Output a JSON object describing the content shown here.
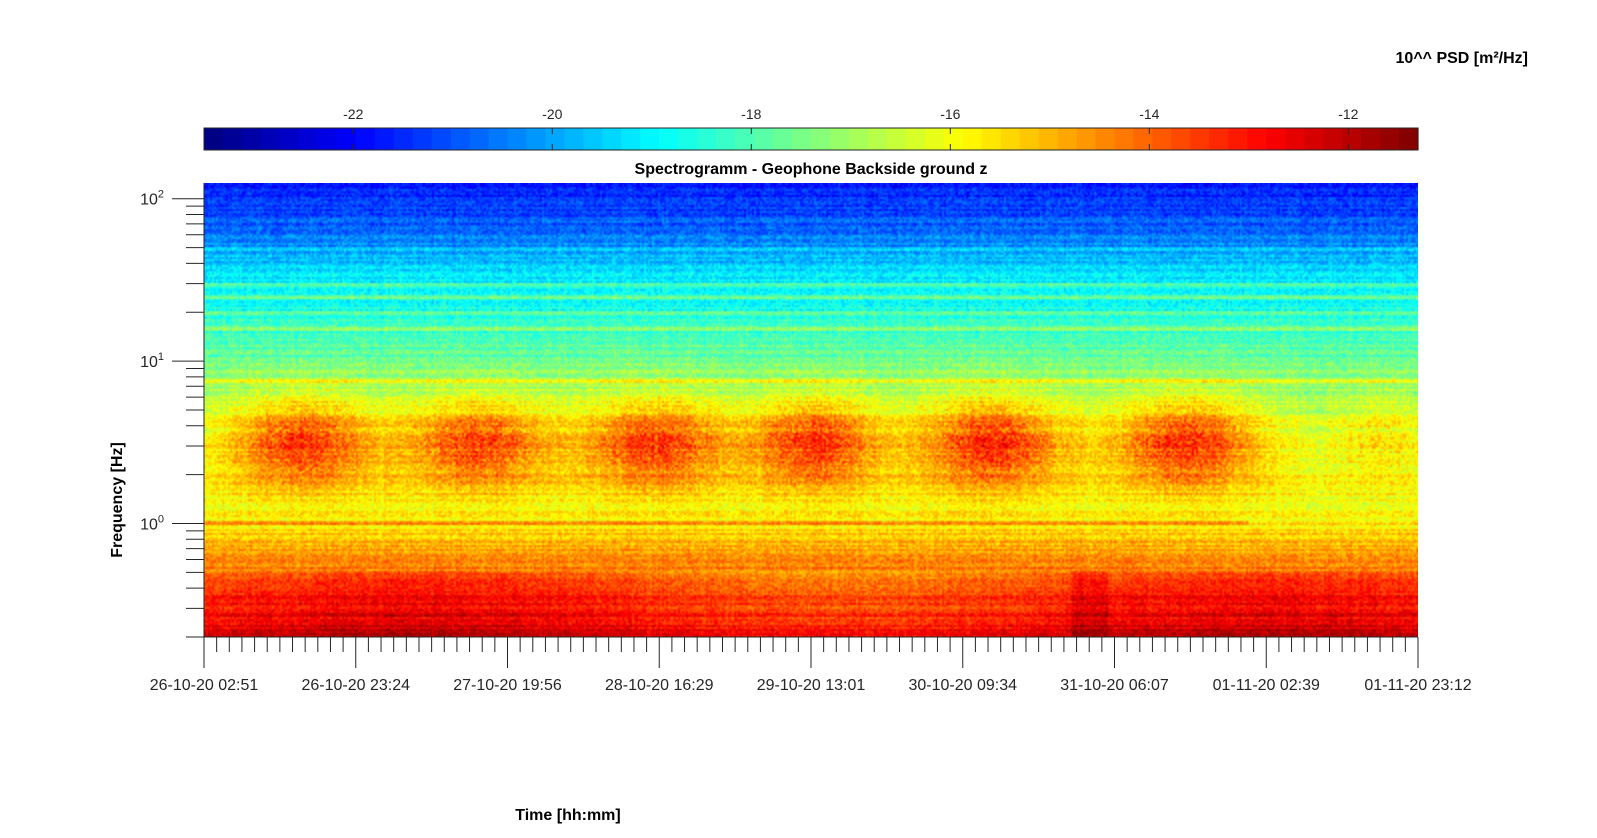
{
  "chart_data": {
    "type": "heatmap",
    "title": "Spectrogramm - Geophone Backside ground z",
    "xlabel": "Time [hh:mm]",
    "ylabel": "Frequency [Hz]",
    "x_tick_labels": [
      "26-10-20 02:51",
      "26-10-20 23:24",
      "27-10-20 19:56",
      "28-10-20 16:29",
      "29-10-20 13:01",
      "30-10-20 09:34",
      "31-10-20 06:07",
      "01-11-20 02:39",
      "01-11-20 23:12"
    ],
    "x_range": [
      "26-10-20 02:51",
      "01-11-20 23:12"
    ],
    "y_scale": "log",
    "y_range": [
      0.2,
      125
    ],
    "y_ticks": [
      1,
      10,
      100
    ],
    "y_tick_labels": [
      {
        "base": "10",
        "exp": "0"
      },
      {
        "base": "10",
        "exp": "1"
      },
      {
        "base": "10",
        "exp": "2"
      }
    ],
    "colorbar": {
      "label": "10^^ PSD [m²/Hz]",
      "position": "top",
      "colormap": "jet",
      "range": [
        -23.5,
        -11.3
      ],
      "ticks": [
        -22,
        -20,
        -18,
        -16,
        -14,
        -12
      ],
      "tick_labels": [
        "-22",
        "-20",
        "-18",
        "-16",
        "-14",
        "-12"
      ]
    },
    "activity_bursts": [
      {
        "center_day": 0.55,
        "half_width_days": 0.45,
        "peak_freq_hz": 3.0,
        "level": -13.8
      },
      {
        "center_day": 1.55,
        "half_width_days": 0.45,
        "peak_freq_hz": 3.0,
        "level": -13.9
      },
      {
        "center_day": 2.55,
        "half_width_days": 0.45,
        "peak_freq_hz": 3.0,
        "level": -13.8
      },
      {
        "center_day": 3.45,
        "half_width_days": 0.4,
        "peak_freq_hz": 3.0,
        "level": -13.7
      },
      {
        "center_day": 4.45,
        "half_width_days": 0.45,
        "peak_freq_hz": 3.0,
        "level": -13.6
      },
      {
        "center_day": 5.55,
        "half_width_days": 0.45,
        "peak_freq_hz": 3.0,
        "level": -13.7
      },
      {
        "center_day": 6.65,
        "half_width_days": 0.3,
        "peak_freq_hz": 3.0,
        "level": -15.8
      }
    ],
    "spectral_lines_hz": [
      1.0,
      7.5,
      16,
      20,
      25,
      30,
      50
    ]
  }
}
